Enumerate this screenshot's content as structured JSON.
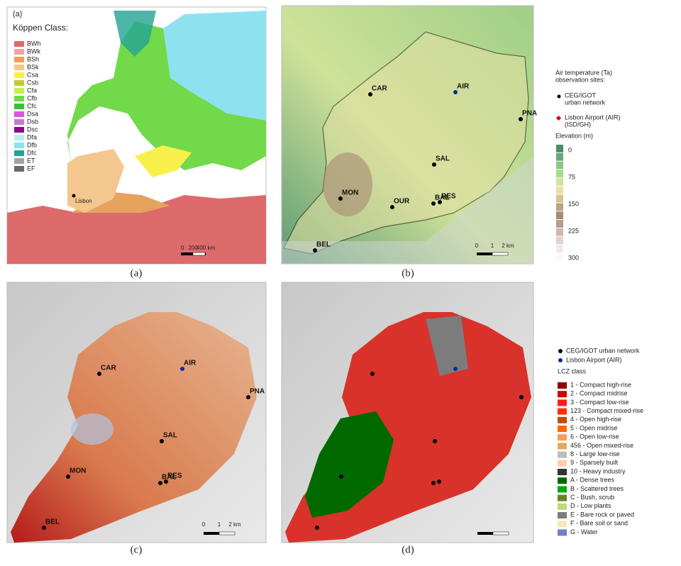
{
  "panel_a": {
    "tag": "(a)",
    "legend_title": "Köppen Class:",
    "classes": [
      {
        "name": "BWh",
        "color": "#dd6b6b"
      },
      {
        "name": "BWk",
        "color": "#f3a3a3"
      },
      {
        "name": "BSh",
        "color": "#e6a35e"
      },
      {
        "name": "BSk",
        "color": "#f3c78e"
      },
      {
        "name": "Csa",
        "color": "#f8f04a"
      },
      {
        "name": "Csb",
        "color": "#c6c83c"
      },
      {
        "name": "Cfa",
        "color": "#c4f04e"
      },
      {
        "name": "Cfb",
        "color": "#72d94a"
      },
      {
        "name": "Cfc",
        "color": "#3cbf3a"
      },
      {
        "name": "Dsa",
        "color": "#de55de"
      },
      {
        "name": "Dsb",
        "color": "#c47fc8"
      },
      {
        "name": "Dsc",
        "color": "#8b0b8f"
      },
      {
        "name": "Dfa",
        "color": "#b6eef2"
      },
      {
        "name": "Dfb",
        "color": "#8ee2f0"
      },
      {
        "name": "Dfc",
        "color": "#23a393"
      },
      {
        "name": "ET",
        "color": "#a3a3a3"
      },
      {
        "name": "EF",
        "color": "#6a6a6a"
      }
    ],
    "city": "Lisbon",
    "scale": [
      "0",
      "200",
      "400 km"
    ]
  },
  "panel_b": {
    "sites": [
      "CAR",
      "AIR",
      "PNA",
      "SAL",
      "MON",
      "OUR",
      "BAL",
      "RES",
      "BEL"
    ],
    "scale": [
      "0",
      "1",
      "2 km"
    ]
  },
  "legend_b": {
    "title_lines": [
      "Air temperature (Ta)",
      "observation sites:"
    ],
    "urban_lines": [
      "CEG/IGOT",
      "urban network"
    ],
    "airport_lines": [
      "Lisbon Airport (AIR)",
      "(ISD/GH)"
    ],
    "elevation_title": "Elevation (m)",
    "elevation_labels": [
      "0",
      "75",
      "150",
      "225",
      "300"
    ],
    "elevation_colors": [
      "#4e8a70",
      "#6aa77c",
      "#8cc683",
      "#a9d98c",
      "#cde69b",
      "#e6e3a0",
      "#d6c690",
      "#bca37e",
      "#a98a73",
      "#b99a90",
      "#cfb7b0",
      "#e2d3d0",
      "#f2eaea",
      "#fbf8f8"
    ]
  },
  "panel_c": {
    "sites": [
      "CAR",
      "AIR",
      "PNA",
      "SAL",
      "MON",
      "BAL",
      "RES",
      "BEL"
    ],
    "scale": [
      "0",
      "1",
      "2 km"
    ]
  },
  "legend_d": {
    "urban": "CEG/IGOT urban network",
    "airport": "Lisbon Airport (AIR)",
    "title": "LCZ class",
    "classes": [
      {
        "label": "1 - Compact high-rise",
        "color": "#8c0000"
      },
      {
        "label": "2 - Compact midrise",
        "color": "#cf0000"
      },
      {
        "label": "3 - Compact low-rise",
        "color": "#ff1a1a"
      },
      {
        "label": "123 - Compact mixed-rise",
        "color": "#ff2f00"
      },
      {
        "label": "4 - Open high-rise",
        "color": "#bf4d00"
      },
      {
        "label": "5 - Open midrise",
        "color": "#ff6600"
      },
      {
        "label": "6 - Open low-rise",
        "color": "#ff9955"
      },
      {
        "label": "456 - Open mixed-rise",
        "color": "#e2a955"
      },
      {
        "label": "8 - Large low-rise",
        "color": "#bcbcbc"
      },
      {
        "label": "9 - Sparsely built",
        "color": "#ffccaa"
      },
      {
        "label": "10 - Heavy industry",
        "color": "#333333"
      },
      {
        "label": "A - Dense trees",
        "color": "#006a00"
      },
      {
        "label": "B - Scattered trees",
        "color": "#00aa00"
      },
      {
        "label": "C - Bush, scrub",
        "color": "#648525"
      },
      {
        "label": "D - Low plants",
        "color": "#b9db79"
      },
      {
        "label": "E - Bare rock or paved",
        "color": "#7c7c7c"
      },
      {
        "label": "F - Bare soil or sand",
        "color": "#fbe6b8"
      },
      {
        "label": "G - Water",
        "color": "#7080c8"
      }
    ]
  },
  "captions": [
    "(a)",
    "(b)",
    "(c)",
    "(d)"
  ]
}
